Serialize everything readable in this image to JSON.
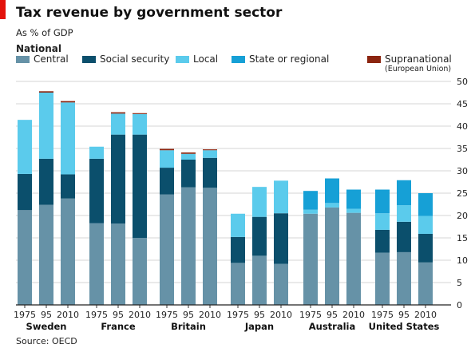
{
  "title": "Tax revenue by government sector",
  "subtitle": "As % of GDP",
  "legend_heading": "National",
  "source": "Source: OECD",
  "colors": {
    "central": "#6692a7",
    "social": "#0b4f6c",
    "local": "#5bcbec",
    "state": "#16a0d6",
    "supra": "#8b2510",
    "grid": "#d6d6d6",
    "accent": "#e3120b"
  },
  "legend": [
    {
      "key": "central",
      "label": "Central"
    },
    {
      "key": "social",
      "label": "Social security"
    },
    {
      "key": "local",
      "label": "Local"
    },
    {
      "key": "state",
      "label": "State or regional"
    },
    {
      "key": "supra",
      "label": "Supranational",
      "sublabel": "(European Union)"
    }
  ],
  "chart_data": {
    "type": "bar",
    "stacked": true,
    "ylim": [
      0,
      50
    ],
    "yticks": [
      0,
      5,
      10,
      15,
      20,
      25,
      30,
      35,
      40,
      45,
      50
    ],
    "grid": true,
    "stack_order": [
      "central",
      "social",
      "local",
      "state",
      "supra"
    ],
    "groups": [
      {
        "country": "Sweden",
        "bars": [
          {
            "year": "1975",
            "central": 21.2,
            "social": 8.1,
            "local": 12.1,
            "state": 0,
            "supra": 0
          },
          {
            "year": "95",
            "central": 22.4,
            "social": 10.3,
            "local": 14.8,
            "state": 0,
            "supra": 0.3
          },
          {
            "year": "2010",
            "central": 23.8,
            "social": 5.4,
            "local": 16.1,
            "state": 0,
            "supra": 0.3
          }
        ]
      },
      {
        "country": "France",
        "bars": [
          {
            "year": "1975",
            "central": 18.3,
            "social": 14.4,
            "local": 2.7,
            "state": 0,
            "supra": 0
          },
          {
            "year": "95",
            "central": 18.2,
            "social": 19.9,
            "local": 4.7,
            "state": 0,
            "supra": 0.3
          },
          {
            "year": "2010",
            "central": 15.0,
            "social": 23.1,
            "local": 4.6,
            "state": 0,
            "supra": 0.2
          }
        ]
      },
      {
        "country": "Britain",
        "bars": [
          {
            "year": "1975",
            "central": 24.7,
            "social": 6.0,
            "local": 3.9,
            "state": 0,
            "supra": 0.3
          },
          {
            "year": "95",
            "central": 26.3,
            "social": 6.2,
            "local": 1.3,
            "state": 0,
            "supra": 0.3
          },
          {
            "year": "2010",
            "central": 26.2,
            "social": 6.7,
            "local": 1.7,
            "state": 0,
            "supra": 0.2
          }
        ]
      },
      {
        "country": "Japan",
        "bars": [
          {
            "year": "1975",
            "central": 9.4,
            "social": 5.8,
            "local": 5.2,
            "state": 0,
            "supra": 0
          },
          {
            "year": "95",
            "central": 11.0,
            "social": 8.7,
            "local": 6.7,
            "state": 0,
            "supra": 0
          },
          {
            "year": "2010",
            "central": 9.2,
            "social": 11.3,
            "local": 7.3,
            "state": 0,
            "supra": 0
          }
        ]
      },
      {
        "country": "Australia",
        "bars": [
          {
            "year": "1975",
            "central": 20.4,
            "social": 0,
            "local": 0.9,
            "state": 4.2,
            "supra": 0
          },
          {
            "year": "95",
            "central": 21.8,
            "social": 0,
            "local": 1.0,
            "state": 5.5,
            "supra": 0
          },
          {
            "year": "2010",
            "central": 20.6,
            "social": 0,
            "local": 0.9,
            "state": 4.3,
            "supra": 0
          }
        ]
      },
      {
        "country": "United States",
        "bars": [
          {
            "year": "1975",
            "central": 11.7,
            "social": 5.1,
            "local": 3.7,
            "state": 5.3,
            "supra": 0
          },
          {
            "year": "95",
            "central": 11.8,
            "social": 6.8,
            "local": 3.7,
            "state": 5.6,
            "supra": 0
          },
          {
            "year": "2010",
            "central": 9.5,
            "social": 6.4,
            "local": 4.0,
            "state": 5.1,
            "supra": 0
          }
        ]
      }
    ]
  }
}
